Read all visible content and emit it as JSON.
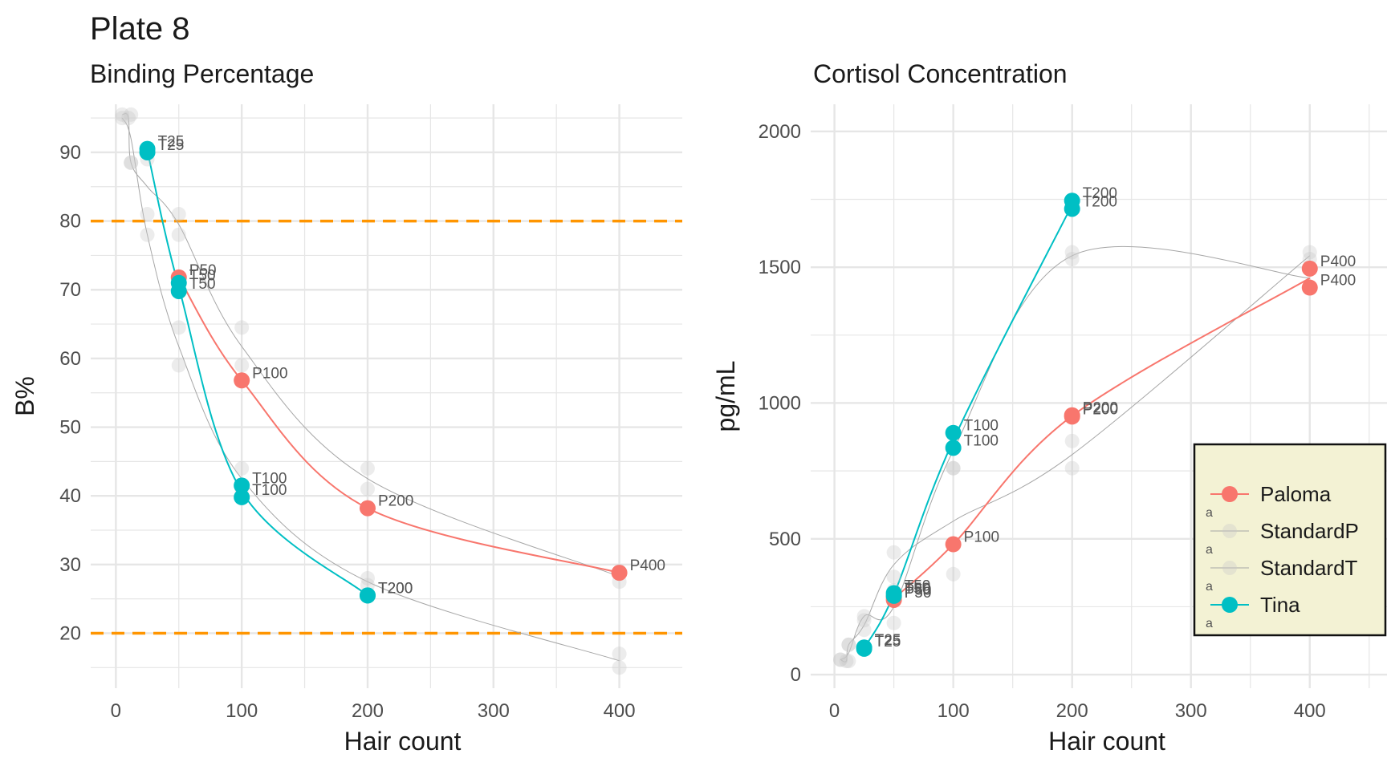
{
  "title": "Plate 8",
  "colors": {
    "paloma": "#F8766D",
    "tina": "#00BFC4",
    "standard": "#b3b3b3",
    "threshold": "#FF9500",
    "legend_bg": "#F3F2D4",
    "grid": "#e6e6e6"
  },
  "chart_data": [
    {
      "type": "scatter",
      "title": "Binding Percentage",
      "xlabel": "Hair count",
      "ylabel": "B%",
      "xlim": [
        -20,
        450
      ],
      "ylim": [
        12,
        97
      ],
      "x_ticks": [
        "0",
        "100",
        "200",
        "300",
        "400"
      ],
      "x_tick_values": [
        0,
        100,
        200,
        300,
        400
      ],
      "y_ticks": [
        "20",
        "30",
        "40",
        "50",
        "60",
        "70",
        "80",
        "90"
      ],
      "y_tick_values": [
        20,
        30,
        40,
        50,
        60,
        70,
        80,
        90
      ],
      "reference_lines": [
        80,
        20
      ],
      "series": [
        {
          "name": "Paloma",
          "color": "#F8766D",
          "points": [
            [
              50,
              71.8,
              "P50"
            ],
            [
              100,
              56.8,
              "P100"
            ],
            [
              200,
              38.2,
              "P200"
            ],
            [
              400,
              28.8,
              "P400"
            ]
          ]
        },
        {
          "name": "Tina",
          "color": "#00BFC4",
          "points": [
            [
              25,
              90.5,
              "T25"
            ],
            [
              25,
              90.0,
              "T25"
            ],
            [
              50,
              71.0,
              "T50"
            ],
            [
              50,
              69.8,
              "T50"
            ],
            [
              100,
              41.5,
              "T100"
            ],
            [
              100,
              39.8,
              "T100"
            ],
            [
              200,
              25.5,
              "T200"
            ],
            [
              200,
              25.5,
              "T200"
            ]
          ]
        },
        {
          "name": "StandardP",
          "color": "#b3b3b3",
          "points": [
            [
              5,
              95.5
            ],
            [
              10,
              95.0
            ],
            [
              12,
              88.5
            ],
            [
              25,
              89.0
            ],
            [
              25,
              81.0
            ],
            [
              50,
              81.0
            ],
            [
              50,
              78.0
            ],
            [
              100,
              64.5
            ],
            [
              100,
              59.0
            ],
            [
              200,
              44.0
            ],
            [
              200,
              41.0
            ],
            [
              400,
              29.0
            ],
            [
              400,
              27.5
            ]
          ]
        },
        {
          "name": "StandardT",
          "color": "#b3b3b3",
          "points": [
            [
              5,
              95.0
            ],
            [
              12,
              95.5
            ],
            [
              12,
              88.5
            ],
            [
              25,
              78.0
            ],
            [
              50,
              64.5
            ],
            [
              50,
              59.0
            ],
            [
              100,
              44.0
            ],
            [
              100,
              41.0
            ],
            [
              200,
              28.0
            ],
            [
              200,
              27.0
            ],
            [
              400,
              17.0
            ],
            [
              400,
              15.0
            ]
          ]
        }
      ]
    },
    {
      "type": "scatter",
      "title": "Cortisol Concentration",
      "xlabel": "Hair count",
      "ylabel": "pg/mL",
      "xlim": [
        -20,
        465
      ],
      "ylim": [
        -50,
        2100
      ],
      "x_ticks": [
        "0",
        "100",
        "200",
        "300",
        "400"
      ],
      "x_tick_values": [
        0,
        100,
        200,
        300,
        400
      ],
      "y_ticks": [
        "0",
        "500",
        "1000",
        "1500",
        "2000"
      ],
      "y_tick_values": [
        0,
        500,
        1000,
        1500,
        2000
      ],
      "series": [
        {
          "name": "Paloma",
          "color": "#F8766D",
          "points": [
            [
              50,
              285,
              "P50"
            ],
            [
              50,
              275,
              "P50"
            ],
            [
              100,
              480,
              "P100"
            ],
            [
              200,
              955,
              "P200"
            ],
            [
              200,
              950,
              "P200"
            ],
            [
              400,
              1495,
              "P400"
            ],
            [
              400,
              1425,
              "P400"
            ]
          ]
        },
        {
          "name": "Tina",
          "color": "#00BFC4",
          "points": [
            [
              25,
              100,
              "T25"
            ],
            [
              25,
              95,
              "T25"
            ],
            [
              50,
              300,
              "T50"
            ],
            [
              50,
              290,
              "T50"
            ],
            [
              100,
              890,
              "T100"
            ],
            [
              100,
              835,
              "T100"
            ],
            [
              200,
              1745,
              "T200"
            ],
            [
              200,
              1715,
              "T200"
            ]
          ]
        },
        {
          "name": "StandardP",
          "color": "#b3b3b3",
          "points": [
            [
              5,
              55
            ],
            [
              10,
              50
            ],
            [
              12,
              110
            ],
            [
              25,
              200
            ],
            [
              25,
              165
            ],
            [
              50,
              450
            ],
            [
              50,
              360
            ],
            [
              100,
              760
            ],
            [
              100,
              370
            ],
            [
              200,
              860
            ],
            [
              200,
              760
            ],
            [
              400,
              1555
            ],
            [
              400,
              1530
            ]
          ]
        },
        {
          "name": "StandardT",
          "color": "#b3b3b3",
          "points": [
            [
              5,
              55
            ],
            [
              12,
              50
            ],
            [
              12,
              110
            ],
            [
              25,
              215
            ],
            [
              50,
              310
            ],
            [
              50,
              190
            ],
            [
              100,
              760
            ],
            [
              100,
              890
            ],
            [
              200,
              1555
            ],
            [
              200,
              1530
            ],
            [
              400,
              1495
            ],
            [
              400,
              1425
            ]
          ]
        }
      ],
      "legend": {
        "placement": "right",
        "entries": [
          "Paloma",
          "StandardP",
          "StandardT",
          "Tina"
        ],
        "key_letter": "a"
      }
    }
  ]
}
